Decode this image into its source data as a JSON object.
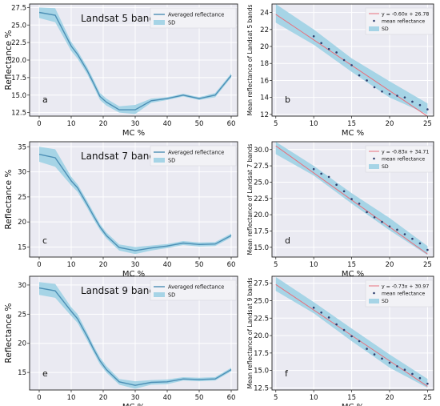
{
  "colors": {
    "plot_bg": "#eaeaf2",
    "grid": "#ffffff",
    "line": "#4c8fb5",
    "band": "#a6d4e6",
    "fit_line": "#e8707c",
    "points": "#2e3e6e"
  },
  "chart_data": [
    {
      "panel_letter": "a",
      "type": "area",
      "title": "Landsat 5 bands",
      "xlabel": "MC %",
      "ylabel": "Reflectance %",
      "xlim": [
        -3,
        62
      ],
      "ylim": [
        12,
        28
      ],
      "xticks": [
        0,
        10,
        20,
        30,
        40,
        50,
        60
      ],
      "yticks": [
        12.5,
        15.0,
        17.5,
        20.0,
        22.5,
        25.0,
        27.5
      ],
      "ytick_labels": [
        "12.5",
        "15.0",
        "17.5",
        "20.0",
        "22.5",
        "25.0",
        "27.5"
      ],
      "legend": [
        "Averaged reflectance",
        "SD"
      ],
      "legend_position": "top-right",
      "x": [
        0,
        5,
        10,
        12,
        15,
        17,
        19,
        21,
        25,
        30,
        35,
        40,
        45,
        50,
        55,
        60
      ],
      "mean": [
        26.8,
        26.4,
        22.0,
        20.8,
        18.5,
        16.7,
        14.8,
        14.0,
        12.9,
        12.9,
        14.2,
        14.5,
        15.0,
        14.5,
        15.0,
        17.8
      ],
      "upper": [
        27.5,
        27.4,
        22.6,
        21.3,
        19.0,
        17.2,
        15.3,
        14.5,
        13.4,
        13.6,
        14.5,
        14.7,
        15.2,
        14.7,
        15.3,
        18.1
      ],
      "lower": [
        26.0,
        25.4,
        21.3,
        20.2,
        18.0,
        16.2,
        14.3,
        13.5,
        12.5,
        12.3,
        13.9,
        14.3,
        14.8,
        14.3,
        14.7,
        17.5
      ]
    },
    {
      "panel_letter": "b",
      "type": "scatter",
      "xlabel": "MC %",
      "ylabel": "Mean reflectance of Landsat 5 bands",
      "xlim": [
        4.5,
        25.8
      ],
      "ylim": [
        11.8,
        25
      ],
      "xticks": [
        5,
        10,
        15,
        20,
        25
      ],
      "yticks": [
        12,
        14,
        16,
        18,
        20,
        22,
        24
      ],
      "ytick_labels": [
        "12",
        "14",
        "16",
        "18",
        "20",
        "22",
        "24"
      ],
      "legend": [
        "y = -0.60x + 26.78",
        "mean reflectance",
        "SD"
      ],
      "legend_position": "top-right",
      "fit": {
        "slope": -0.6,
        "intercept": 26.78
      },
      "points_x": [
        10,
        11,
        12,
        13,
        14,
        15,
        16,
        17,
        18,
        19,
        20,
        21,
        22,
        23,
        24,
        25
      ],
      "points_y": [
        21.2,
        20.4,
        19.7,
        19.3,
        18.4,
        17.8,
        16.6,
        16.0,
        15.2,
        14.7,
        14.4,
        14.2,
        14.0,
        13.5,
        13.1,
        12.6
      ],
      "band_x": [
        5,
        10,
        15,
        20,
        25
      ],
      "band_upper": [
        25.0,
        22.0,
        18.6,
        15.9,
        13.3
      ],
      "band_lower": [
        22.8,
        20.2,
        17.0,
        14.0,
        12.0
      ]
    },
    {
      "panel_letter": "c",
      "type": "area",
      "title": "Landsat 7 bands",
      "xlabel": "MC %",
      "ylabel": "Reflectance %",
      "xlim": [
        -3,
        62
      ],
      "ylim": [
        13,
        36
      ],
      "xticks": [
        0,
        10,
        20,
        30,
        40,
        50,
        60
      ],
      "yticks": [
        15,
        20,
        25,
        30,
        35
      ],
      "ytick_labels": [
        "15",
        "20",
        "25",
        "30",
        "35"
      ],
      "legend": [
        "Averaged reflectance",
        "SD"
      ],
      "legend_position": "top-right",
      "x": [
        0,
        5,
        10,
        12,
        15,
        17,
        19,
        21,
        25,
        30,
        35,
        40,
        45,
        50,
        55,
        60
      ],
      "mean": [
        33.5,
        32.8,
        28.2,
        26.8,
        23.5,
        21.2,
        19.0,
        17.3,
        14.9,
        14.3,
        14.8,
        15.2,
        15.8,
        15.5,
        15.6,
        17.3
      ],
      "upper": [
        35.0,
        34.5,
        29.0,
        27.5,
        24.2,
        21.9,
        19.6,
        17.9,
        15.5,
        15.0,
        15.3,
        15.6,
        16.2,
        15.9,
        16.0,
        17.7
      ],
      "lower": [
        32.0,
        31.0,
        27.3,
        26.0,
        22.8,
        20.5,
        18.4,
        16.7,
        14.3,
        13.6,
        14.3,
        14.8,
        15.4,
        15.1,
        15.2,
        16.9
      ]
    },
    {
      "panel_letter": "d",
      "type": "scatter",
      "xlabel": "MC %",
      "ylabel": "Mean reflectance of Landsat 7 bands",
      "xlim": [
        4.5,
        25.8
      ],
      "ylim": [
        13.5,
        31.2
      ],
      "xticks": [
        5,
        10,
        15,
        20,
        25
      ],
      "yticks": [
        15.0,
        17.5,
        20.0,
        22.5,
        25.0,
        27.5,
        30.0
      ],
      "ytick_labels": [
        "15.0",
        "17.5",
        "20.0",
        "22.5",
        "25.0",
        "27.5",
        "30.0"
      ],
      "legend": [
        "y = -0.83x + 34.71",
        "mean reflectance",
        "SD"
      ],
      "legend_position": "top-right",
      "fit": {
        "slope": -0.83,
        "intercept": 34.71
      },
      "points_x": [
        10,
        11,
        12,
        13,
        14,
        15,
        16,
        17,
        18,
        19,
        20,
        21,
        22,
        23,
        24,
        25
      ],
      "points_y": [
        27.0,
        26.3,
        25.8,
        24.6,
        23.6,
        22.4,
        21.7,
        20.4,
        19.6,
        18.9,
        18.2,
        17.7,
        17.0,
        16.3,
        15.6,
        14.6
      ],
      "band_x": [
        5,
        10,
        15,
        20,
        25
      ],
      "band_upper": [
        31.2,
        27.5,
        23.3,
        19.5,
        15.2
      ],
      "band_lower": [
        29.3,
        26.0,
        21.7,
        17.6,
        13.8
      ]
    },
    {
      "panel_letter": "e",
      "type": "area",
      "title": "Landsat 9 bands",
      "xlabel": "MC %",
      "ylabel": "Reflectance %",
      "xlim": [
        -3,
        62
      ],
      "ylim": [
        12,
        31.5
      ],
      "xticks": [
        0,
        10,
        20,
        30,
        40,
        50,
        60
      ],
      "yticks": [
        15,
        20,
        25,
        30
      ],
      "ytick_labels": [
        "15",
        "20",
        "25",
        "30"
      ],
      "legend": [
        "Averaged reflectance",
        "SD"
      ],
      "legend_position": "top-right",
      "x": [
        0,
        5,
        10,
        12,
        15,
        17,
        19,
        21,
        25,
        30,
        35,
        40,
        45,
        50,
        55,
        60
      ],
      "mean": [
        29.5,
        29.0,
        25.5,
        24.2,
        21.2,
        19.0,
        17.0,
        15.5,
        13.4,
        12.8,
        13.3,
        13.4,
        13.9,
        13.8,
        13.9,
        15.5
      ],
      "upper": [
        30.5,
        30.2,
        26.2,
        25.0,
        21.8,
        19.6,
        17.6,
        16.1,
        13.9,
        13.5,
        13.7,
        13.8,
        14.2,
        14.1,
        14.2,
        15.8
      ],
      "lower": [
        28.3,
        27.8,
        24.7,
        23.5,
        20.5,
        18.4,
        16.4,
        15.0,
        12.9,
        12.2,
        12.9,
        13.0,
        13.6,
        13.5,
        13.6,
        15.2
      ]
    },
    {
      "panel_letter": "f",
      "type": "scatter",
      "xlabel": "MC %",
      "ylabel": "Mean reflectance of Landsat 9 bands",
      "xlim": [
        4.5,
        25.8
      ],
      "ylim": [
        12.2,
        28.5
      ],
      "xticks": [
        5,
        10,
        15,
        20,
        25
      ],
      "yticks": [
        12.5,
        15.0,
        17.5,
        20.0,
        22.5,
        25.0,
        27.5
      ],
      "ytick_labels": [
        "12.5",
        "15.0",
        "17.5",
        "20.0",
        "22.5",
        "25.0",
        "27.5"
      ],
      "legend": [
        "y = -0.73x + 30.97",
        "mean reflectance",
        "SD"
      ],
      "legend_position": "top-right",
      "fit": {
        "slope": -0.73,
        "intercept": 30.97
      },
      "points_x": [
        10,
        11,
        12,
        13,
        14,
        15,
        16,
        17,
        18,
        19,
        20,
        21,
        22,
        23,
        24,
        25
      ],
      "points_y": [
        24.0,
        23.3,
        22.6,
        21.6,
        20.8,
        19.9,
        19.2,
        18.1,
        17.3,
        16.7,
        16.1,
        15.6,
        15.1,
        14.5,
        13.9,
        13.1
      ],
      "band_x": [
        5,
        10,
        15,
        20,
        25
      ],
      "band_upper": [
        28.4,
        24.8,
        21.0,
        17.3,
        13.8
      ],
      "band_lower": [
        26.4,
        23.2,
        19.2,
        15.4,
        12.5
      ]
    }
  ]
}
